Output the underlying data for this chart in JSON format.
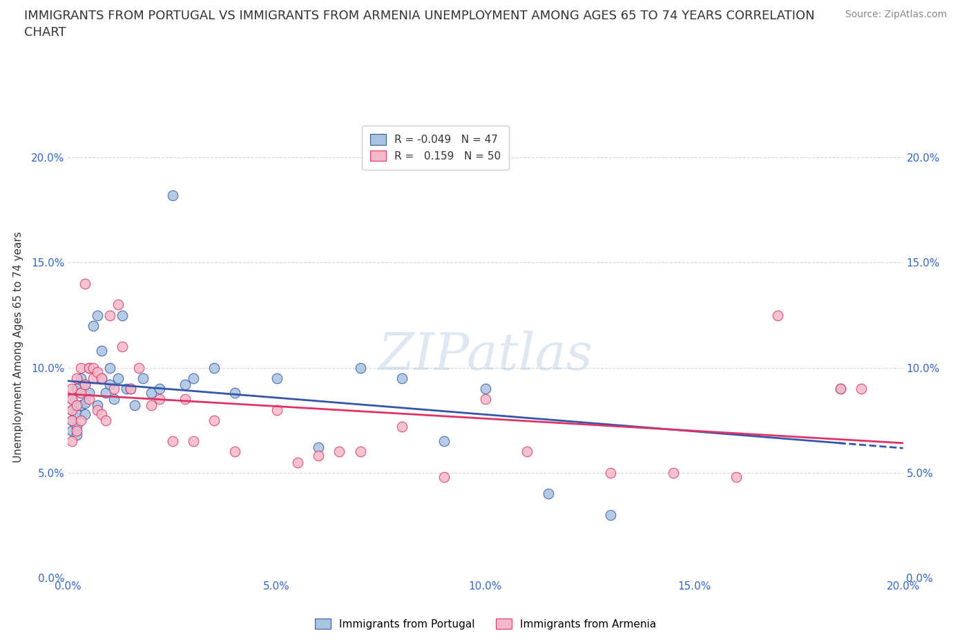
{
  "title": "IMMIGRANTS FROM PORTUGAL VS IMMIGRANTS FROM ARMENIA UNEMPLOYMENT AMONG AGES 65 TO 74 YEARS CORRELATION\nCHART",
  "source_text": "Source: ZipAtlas.com",
  "ylabel": "Unemployment Among Ages 65 to 74 years",
  "watermark": "ZIPatlas",
  "xlim": [
    0.0,
    0.2
  ],
  "ylim": [
    0.0,
    0.22
  ],
  "yticks": [
    0.0,
    0.05,
    0.1,
    0.15,
    0.2
  ],
  "xticks": [
    0.0,
    0.05,
    0.1,
    0.15,
    0.2
  ],
  "ytick_labels": [
    "0.0%",
    "5.0%",
    "10.0%",
    "15.0%",
    "20.0%"
  ],
  "xtick_labels": [
    "0.0%",
    "5.0%",
    "10.0%",
    "15.0%",
    "20.0%"
  ],
  "color_portugal": "#a8c4e0",
  "color_armenia": "#f4b8c8",
  "line_color_portugal": "#3355aa",
  "line_color_armenia": "#dd3366",
  "R_portugal": -0.049,
  "N_portugal": 47,
  "R_armenia": 0.159,
  "N_armenia": 50,
  "legend_label_portugal": "Immigrants from Portugal",
  "legend_label_armenia": "Immigrants from Armenia",
  "portugal_x": [
    0.001,
    0.001,
    0.001,
    0.001,
    0.002,
    0.002,
    0.002,
    0.002,
    0.003,
    0.003,
    0.003,
    0.004,
    0.004,
    0.004,
    0.005,
    0.005,
    0.006,
    0.007,
    0.007,
    0.008,
    0.008,
    0.009,
    0.01,
    0.01,
    0.011,
    0.012,
    0.013,
    0.014,
    0.015,
    0.016,
    0.018,
    0.02,
    0.022,
    0.025,
    0.028,
    0.03,
    0.035,
    0.04,
    0.05,
    0.06,
    0.07,
    0.08,
    0.09,
    0.1,
    0.115,
    0.13,
    0.185
  ],
  "portugal_y": [
    0.075,
    0.08,
    0.085,
    0.07,
    0.078,
    0.072,
    0.068,
    0.09,
    0.082,
    0.088,
    0.095,
    0.083,
    0.078,
    0.092,
    0.088,
    0.1,
    0.12,
    0.125,
    0.082,
    0.095,
    0.108,
    0.088,
    0.1,
    0.092,
    0.085,
    0.095,
    0.125,
    0.09,
    0.09,
    0.082,
    0.095,
    0.088,
    0.09,
    0.182,
    0.092,
    0.095,
    0.1,
    0.088,
    0.095,
    0.062,
    0.1,
    0.095,
    0.065,
    0.09,
    0.04,
    0.03,
    0.09
  ],
  "armenia_x": [
    0.001,
    0.001,
    0.001,
    0.001,
    0.001,
    0.002,
    0.002,
    0.002,
    0.003,
    0.003,
    0.003,
    0.004,
    0.004,
    0.005,
    0.005,
    0.006,
    0.006,
    0.007,
    0.007,
    0.008,
    0.008,
    0.009,
    0.01,
    0.011,
    0.012,
    0.013,
    0.015,
    0.017,
    0.02,
    0.022,
    0.025,
    0.028,
    0.03,
    0.035,
    0.04,
    0.05,
    0.055,
    0.06,
    0.065,
    0.07,
    0.08,
    0.09,
    0.1,
    0.11,
    0.13,
    0.145,
    0.16,
    0.17,
    0.185,
    0.19
  ],
  "armenia_y": [
    0.075,
    0.08,
    0.085,
    0.09,
    0.065,
    0.082,
    0.07,
    0.095,
    0.088,
    0.1,
    0.075,
    0.092,
    0.14,
    0.085,
    0.1,
    0.095,
    0.1,
    0.08,
    0.098,
    0.078,
    0.095,
    0.075,
    0.125,
    0.09,
    0.13,
    0.11,
    0.09,
    0.1,
    0.082,
    0.085,
    0.065,
    0.085,
    0.065,
    0.075,
    0.06,
    0.08,
    0.055,
    0.058,
    0.06,
    0.06,
    0.072,
    0.048,
    0.085,
    0.06,
    0.05,
    0.05,
    0.048,
    0.125,
    0.09,
    0.09
  ],
  "bg_color": "#ffffff",
  "grid_color": "#cccccc",
  "tick_label_color": "#3366cc",
  "title_color": "#333333",
  "title_fontsize": 13,
  "axis_label_fontsize": 11,
  "tick_fontsize": 11,
  "legend_fontsize": 11,
  "source_fontsize": 10,
  "source_color": "#888888"
}
